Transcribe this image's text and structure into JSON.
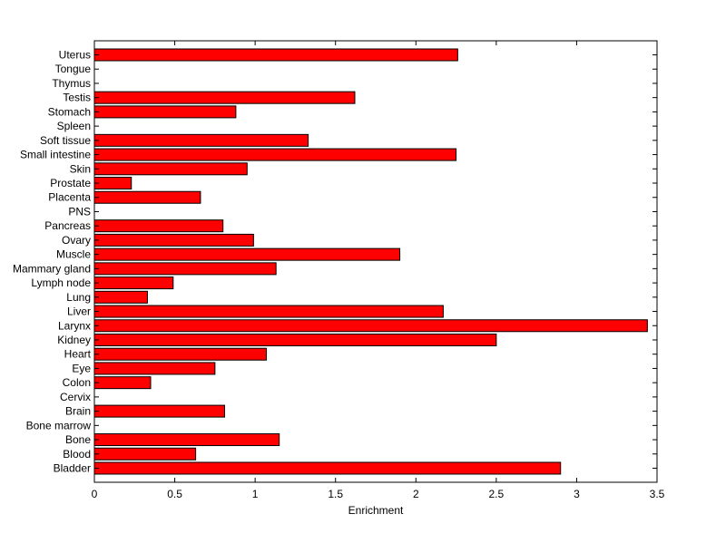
{
  "chart_data": {
    "type": "bar",
    "orientation": "horizontal",
    "title": "",
    "xlabel": "Enrichment",
    "ylabel": "",
    "xlim": [
      0,
      3.5
    ],
    "xticks": [
      0,
      0.5,
      1,
      1.5,
      2,
      2.5,
      3,
      3.5
    ],
    "xtick_labels": [
      "0",
      "0.5",
      "1",
      "1.5",
      "2",
      "2.5",
      "3",
      "3.5"
    ],
    "grid": false,
    "legend": "none",
    "bar_color": "#ff0000",
    "categories": [
      "Uterus",
      "Tongue",
      "Thymus",
      "Testis",
      "Stomach",
      "Spleen",
      "Soft tissue",
      "Small intestine",
      "Skin",
      "Prostate",
      "Placenta",
      "PNS",
      "Pancreas",
      "Ovary",
      "Muscle",
      "Mammary gland",
      "Lymph node",
      "Lung",
      "Liver",
      "Larynx",
      "Kidney",
      "Heart",
      "Eye",
      "Colon",
      "Cervix",
      "Brain",
      "Bone marrow",
      "Bone",
      "Blood",
      "Bladder"
    ],
    "values": [
      2.26,
      0,
      0,
      1.62,
      0.88,
      0,
      1.33,
      2.25,
      0.95,
      0.23,
      0.66,
      0,
      0.8,
      0.99,
      1.9,
      1.13,
      0.49,
      0.33,
      2.17,
      3.44,
      2.5,
      1.07,
      0.75,
      0.35,
      0,
      0.81,
      0,
      1.15,
      0.63,
      2.9
    ]
  }
}
